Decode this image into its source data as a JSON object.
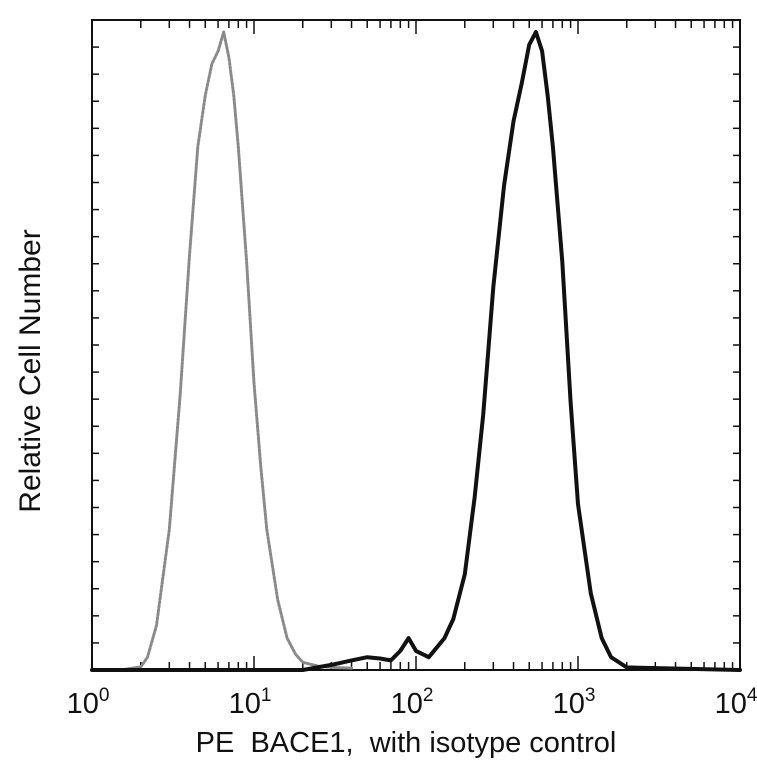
{
  "chart_data": {
    "type": "line",
    "title": "",
    "xlabel": "PE  BACE1,  with isotype control",
    "ylabel": "Relative Cell Number",
    "xscale": "log",
    "xlim": [
      1,
      10000
    ],
    "ylim": [
      0,
      1.0
    ],
    "grid": false,
    "legend": "none",
    "x_ticks": [
      {
        "base": "10",
        "exp": "0"
      },
      {
        "base": "10",
        "exp": "1"
      },
      {
        "base": "10",
        "exp": "2"
      },
      {
        "base": "10",
        "exp": "3"
      },
      {
        "base": "10",
        "exp": "4"
      }
    ],
    "series": [
      {
        "style": "dotted",
        "color": "#8a8a8a",
        "x": [
          1,
          1.5,
          2,
          2.2,
          2.5,
          3,
          3.5,
          4,
          4.5,
          5,
          5.5,
          6,
          6.5,
          7,
          7.5,
          8,
          9,
          10,
          11,
          12,
          14,
          16,
          18,
          20,
          25,
          30,
          40
        ],
        "y": [
          0,
          0,
          0.005,
          0.02,
          0.07,
          0.22,
          0.43,
          0.65,
          0.82,
          0.9,
          0.95,
          0.97,
          1.0,
          0.96,
          0.9,
          0.82,
          0.64,
          0.45,
          0.32,
          0.22,
          0.11,
          0.05,
          0.025,
          0.012,
          0.006,
          0.004,
          0.003
        ]
      },
      {
        "style": "solid",
        "color": "#111111",
        "x": [
          1,
          10,
          20,
          30,
          40,
          50,
          60,
          70,
          80,
          90,
          100,
          120,
          150,
          170,
          200,
          230,
          260,
          300,
          350,
          400,
          450,
          500,
          550,
          600,
          650,
          700,
          800,
          900,
          1000,
          1200,
          1400,
          1600,
          2000,
          10000
        ],
        "y": [
          0,
          0,
          0,
          0.008,
          0.015,
          0.02,
          0.018,
          0.015,
          0.03,
          0.05,
          0.03,
          0.02,
          0.05,
          0.08,
          0.15,
          0.27,
          0.4,
          0.6,
          0.76,
          0.86,
          0.92,
          0.98,
          1.0,
          0.97,
          0.9,
          0.82,
          0.64,
          0.42,
          0.26,
          0.12,
          0.05,
          0.02,
          0.004,
          0
        ]
      }
    ]
  }
}
